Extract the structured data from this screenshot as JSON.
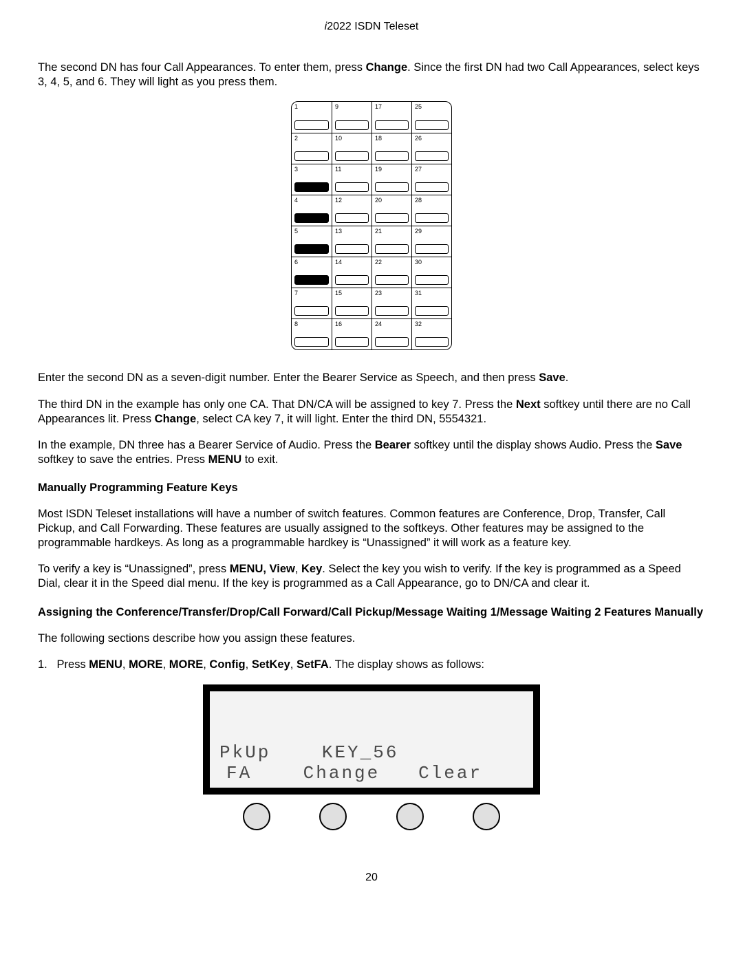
{
  "header": {
    "prefix_italic": "i",
    "title": "2022 ISDN Teleset"
  },
  "paragraphs": {
    "p1_a": "The second DN has four Call Appearances. To enter them, press ",
    "p1_b": "Change",
    "p1_c": ". Since the first DN had two Call Appearances, select keys 3, 4, 5, and 6. They will light as you press them.",
    "p2_a": "Enter the second DN as a seven-digit number. Enter the Bearer Service as Speech, and then press ",
    "p2_b": "Save",
    "p2_c": ".",
    "p3_a": "The third DN in the example has only one CA. That DN/CA will be assigned to key 7. Press the ",
    "p3_b": "Next",
    "p3_c": " softkey until there are no Call Appearances lit. Press ",
    "p3_d": "Change",
    "p3_e": ", select CA key 7, it will light. Enter the third DN, 5554321.",
    "p4_a": "In the example, DN three has a Bearer Service of Audio. Press the ",
    "p4_b": "Bearer",
    "p4_c": " softkey until the display shows Audio. Press the ",
    "p4_d": "Save",
    "p4_e": " softkey to save the entries. Press ",
    "p4_f": "MENU",
    "p4_g": " to exit.",
    "h1": "Manually Programming Feature Keys",
    "p5": "Most ISDN Teleset installations will have a number of switch features. Common features are Conference, Drop, Transfer, Call Pickup, and Call Forwarding. These features are usually assigned to the softkeys. Other features may be assigned to the programmable hardkeys. As long as a programmable hardkey is “Unassigned” it will work as a feature key.",
    "p6_a": "To verify a key is “Unassigned”, press ",
    "p6_b": "MENU, View",
    "p6_c": ", ",
    "p6_d": "Key",
    "p6_e": ". Select the key you wish to verify. If the key is programmed as a Speed Dial, clear it in the Speed dial menu. If the key is programmed as a Call Appearance, go to DN/CA and clear it.",
    "h2": "Assigning the Conference/Transfer/Drop/Call Forward/Call Pickup/Message Waiting 1/Message Waiting 2 Features Manually",
    "p7": "The following sections describe how you assign these features.",
    "li1_num": "1.",
    "li1_a": "Press ",
    "li1_b": "MENU",
    "li1_c": ", ",
    "li1_d": "MORE",
    "li1_e": ", ",
    "li1_f": "MORE",
    "li1_g": ", ",
    "li1_h": "Config",
    "li1_i": ", ",
    "li1_j": "SetKey",
    "li1_k": ", ",
    "li1_l": "SetFA",
    "li1_m": ". The display shows as follows:"
  },
  "keygrid": {
    "cols": 4,
    "rows": 8,
    "labels": [
      [
        "1",
        "9",
        "17",
        "25"
      ],
      [
        "2",
        "10",
        "18",
        "26"
      ],
      [
        "3",
        "11",
        "19",
        "27"
      ],
      [
        "4",
        "12",
        "20",
        "28"
      ],
      [
        "5",
        "13",
        "21",
        "29"
      ],
      [
        "6",
        "14",
        "22",
        "30"
      ],
      [
        "7",
        "15",
        "23",
        "31"
      ],
      [
        "8",
        "16",
        "24",
        "32"
      ]
    ],
    "filled": [
      [
        2,
        0
      ],
      [
        3,
        0
      ],
      [
        4,
        0
      ],
      [
        5,
        0
      ]
    ]
  },
  "display": {
    "line1_left": "PkUp",
    "line1_right": "KEY_56",
    "line2_a": "FA",
    "line2_b": "Change",
    "line2_c": "Clear"
  },
  "page_number": "20",
  "colors": {
    "text": "#000000",
    "screen_bg": "#f3f3f3",
    "screen_text": "#4a4a4a",
    "button_fill": "#e0e0e0"
  }
}
